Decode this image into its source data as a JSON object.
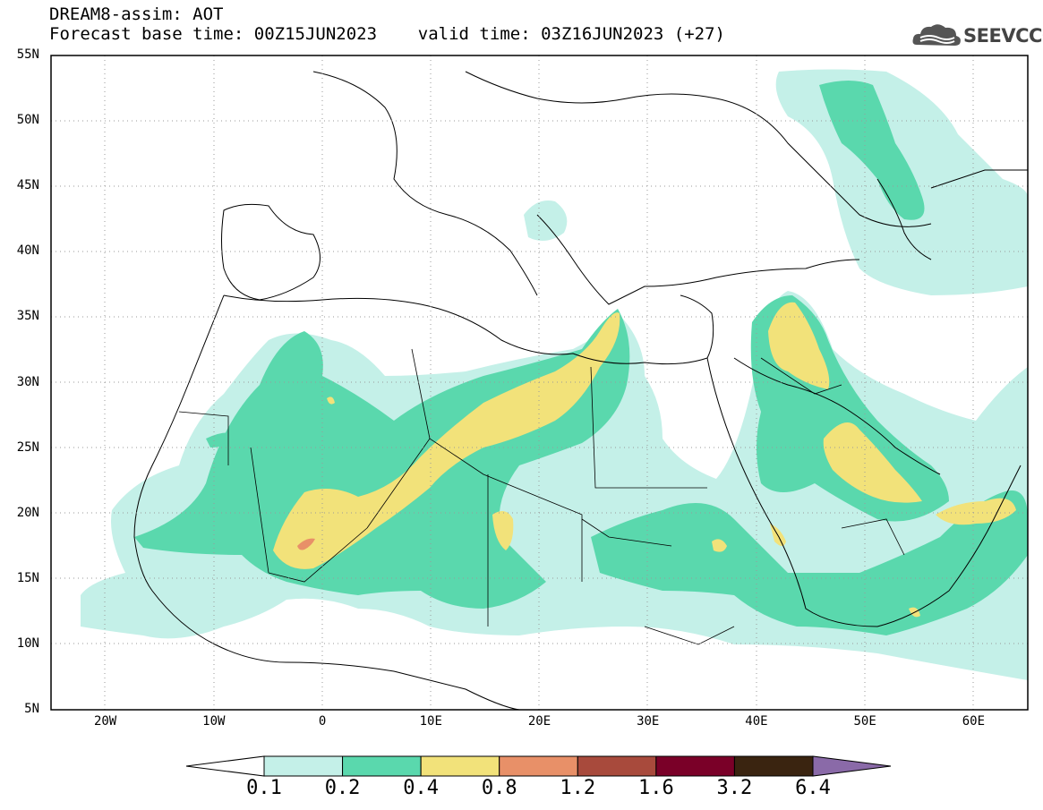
{
  "header": {
    "line1": "DREAM8-assim: AOT",
    "line2": "Forecast base time: 00Z15JUN2023    valid time: 03Z16JUN2023 (+27)",
    "logo_text": "SEEVCCC",
    "logo_icon": "cloud-logo-icon"
  },
  "map": {
    "lon_range": [
      -25,
      65
    ],
    "lat_range": [
      5,
      55
    ],
    "lat_labels": [
      "55N",
      "50N",
      "45N",
      "40N",
      "35N",
      "30N",
      "25N",
      "20N",
      "15N",
      "10N",
      "5N"
    ],
    "lon_labels": [
      "20W",
      "10W",
      "0",
      "10E",
      "20E",
      "30E",
      "40E",
      "50E",
      "60E"
    ]
  },
  "colorbar": {
    "labels": [
      "0.1",
      "0.2",
      "0.4",
      "0.8",
      "1.2",
      "1.6",
      "3.2",
      "6.4"
    ],
    "colors": [
      "#ffffff",
      "#c4f0e8",
      "#5ad8ad",
      "#f2e27a",
      "#e89068",
      "#a84a3c",
      "#7a0028",
      "#3a2410",
      "#8a6aa8"
    ]
  }
}
